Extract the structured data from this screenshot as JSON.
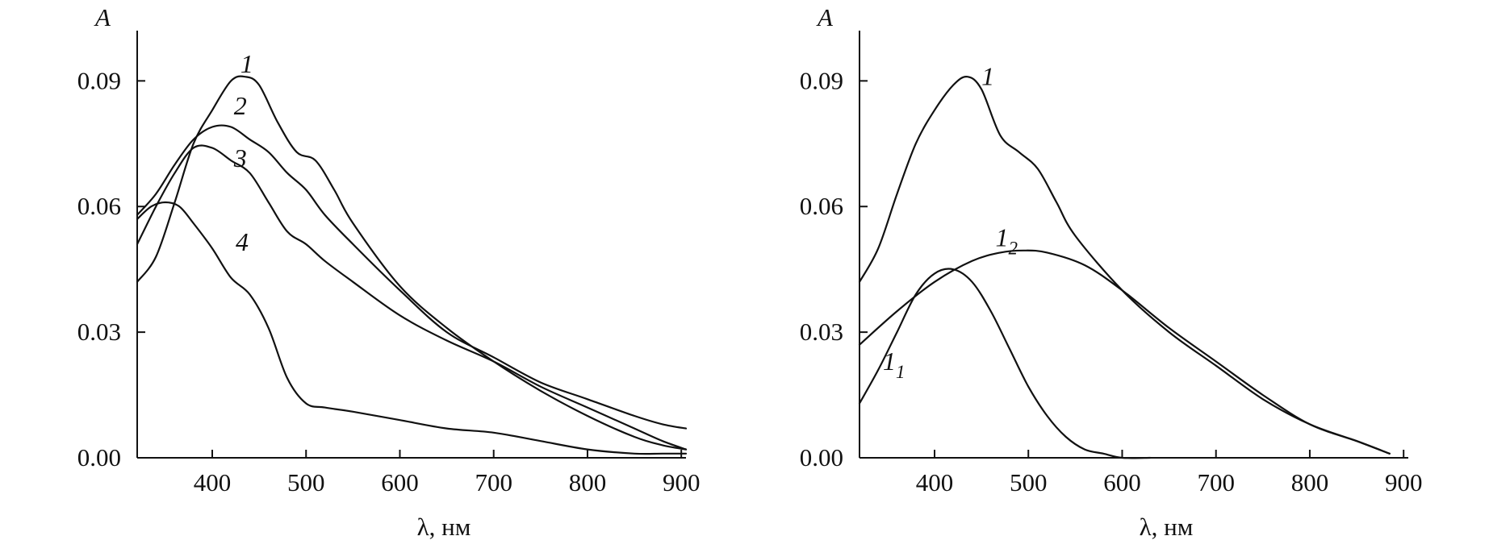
{
  "chart_data": [
    {
      "type": "line",
      "title": "",
      "xlabel": "λ, нм",
      "ylabel": "A",
      "xlim": [
        320,
        905
      ],
      "ylim": [
        0.0,
        0.102
      ],
      "xticks": [
        400,
        500,
        600,
        700,
        800,
        900
      ],
      "yticks": [
        0.0,
        0.03,
        0.06,
        0.09
      ],
      "xtick_labels": [
        "400",
        "500",
        "600",
        "700",
        "800",
        "900"
      ],
      "ytick_labels": [
        "0.00",
        "0.03",
        "0.06",
        "0.09"
      ],
      "grid": false,
      "legend": "inline labels",
      "series": [
        {
          "name": "1",
          "label_x": 430,
          "label_y": 0.092,
          "x": [
            320,
            340,
            360,
            380,
            400,
            420,
            435,
            450,
            470,
            490,
            510,
            530,
            550,
            600,
            650,
            700,
            750,
            800,
            850,
            880,
            905
          ],
          "values": [
            0.042,
            0.048,
            0.061,
            0.075,
            0.083,
            0.09,
            0.091,
            0.089,
            0.08,
            0.073,
            0.071,
            0.064,
            0.056,
            0.041,
            0.031,
            0.023,
            0.016,
            0.01,
            0.005,
            0.003,
            0.002
          ]
        },
        {
          "name": "2",
          "label_x": 423,
          "label_y": 0.082,
          "x": [
            320,
            340,
            360,
            380,
            400,
            420,
            440,
            460,
            480,
            500,
            520,
            550,
            600,
            650,
            700,
            750,
            800,
            850,
            880,
            905
          ],
          "values": [
            0.058,
            0.063,
            0.07,
            0.076,
            0.079,
            0.079,
            0.076,
            0.073,
            0.068,
            0.064,
            0.058,
            0.051,
            0.04,
            0.03,
            0.024,
            0.018,
            0.014,
            0.01,
            0.008,
            0.007
          ]
        },
        {
          "name": "3",
          "label_x": 423,
          "label_y": 0.0695,
          "x": [
            320,
            340,
            360,
            380,
            400,
            420,
            440,
            460,
            480,
            500,
            520,
            550,
            600,
            650,
            700,
            750,
            800,
            850,
            880,
            905
          ],
          "values": [
            0.051,
            0.06,
            0.068,
            0.074,
            0.074,
            0.071,
            0.068,
            0.061,
            0.054,
            0.051,
            0.047,
            0.042,
            0.034,
            0.028,
            0.023,
            0.017,
            0.012,
            0.007,
            0.004,
            0.002
          ]
        },
        {
          "name": "4",
          "label_x": 425,
          "label_y": 0.0495,
          "x": [
            320,
            335,
            350,
            365,
            380,
            400,
            420,
            440,
            460,
            480,
            500,
            520,
            550,
            600,
            650,
            700,
            750,
            800,
            850,
            880,
            905
          ],
          "values": [
            0.057,
            0.06,
            0.061,
            0.06,
            0.056,
            0.05,
            0.043,
            0.039,
            0.031,
            0.019,
            0.013,
            0.012,
            0.011,
            0.009,
            0.007,
            0.006,
            0.004,
            0.002,
            0.001,
            0.001,
            0.001
          ]
        }
      ]
    },
    {
      "type": "line",
      "title": "",
      "xlabel": "λ, нм",
      "ylabel": "A",
      "xlim": [
        320,
        905
      ],
      "ylim": [
        0.0,
        0.102
      ],
      "xticks": [
        400,
        500,
        600,
        700,
        800,
        900
      ],
      "yticks": [
        0.0,
        0.03,
        0.06,
        0.09
      ],
      "xtick_labels": [
        "400",
        "500",
        "600",
        "700",
        "800",
        "900"
      ],
      "ytick_labels": [
        "0.00",
        "0.03",
        "0.06",
        "0.09"
      ],
      "grid": false,
      "legend": "inline labels",
      "series": [
        {
          "name": "1",
          "subscript": "",
          "label_x": 450,
          "label_y": 0.089,
          "x": [
            320,
            340,
            360,
            380,
            400,
            420,
            435,
            450,
            470,
            490,
            510,
            530,
            550,
            600,
            650,
            700,
            750,
            800,
            850,
            885
          ],
          "values": [
            0.042,
            0.05,
            0.063,
            0.075,
            0.083,
            0.089,
            0.091,
            0.088,
            0.077,
            0.073,
            0.069,
            0.061,
            0.053,
            0.04,
            0.03,
            0.022,
            0.014,
            0.008,
            0.004,
            0.001
          ]
        },
        {
          "name": "1",
          "subscript": "1",
          "label_x": 345,
          "label_y": 0.021,
          "x": [
            320,
            340,
            360,
            380,
            400,
            420,
            440,
            460,
            480,
            500,
            520,
            540,
            560,
            580,
            600,
            630
          ],
          "values": [
            0.013,
            0.021,
            0.03,
            0.039,
            0.044,
            0.045,
            0.042,
            0.035,
            0.026,
            0.017,
            0.01,
            0.005,
            0.002,
            0.001,
            0.0,
            0.0
          ]
        },
        {
          "name": "1",
          "subscript": "2",
          "label_x": 465,
          "label_y": 0.0505,
          "x": [
            320,
            360,
            400,
            440,
            470,
            495,
            520,
            560,
            600,
            650,
            700,
            750,
            800,
            850,
            885
          ],
          "values": [
            0.027,
            0.035,
            0.042,
            0.047,
            0.049,
            0.0495,
            0.049,
            0.046,
            0.04,
            0.031,
            0.023,
            0.015,
            0.008,
            0.004,
            0.001
          ]
        }
      ]
    }
  ]
}
